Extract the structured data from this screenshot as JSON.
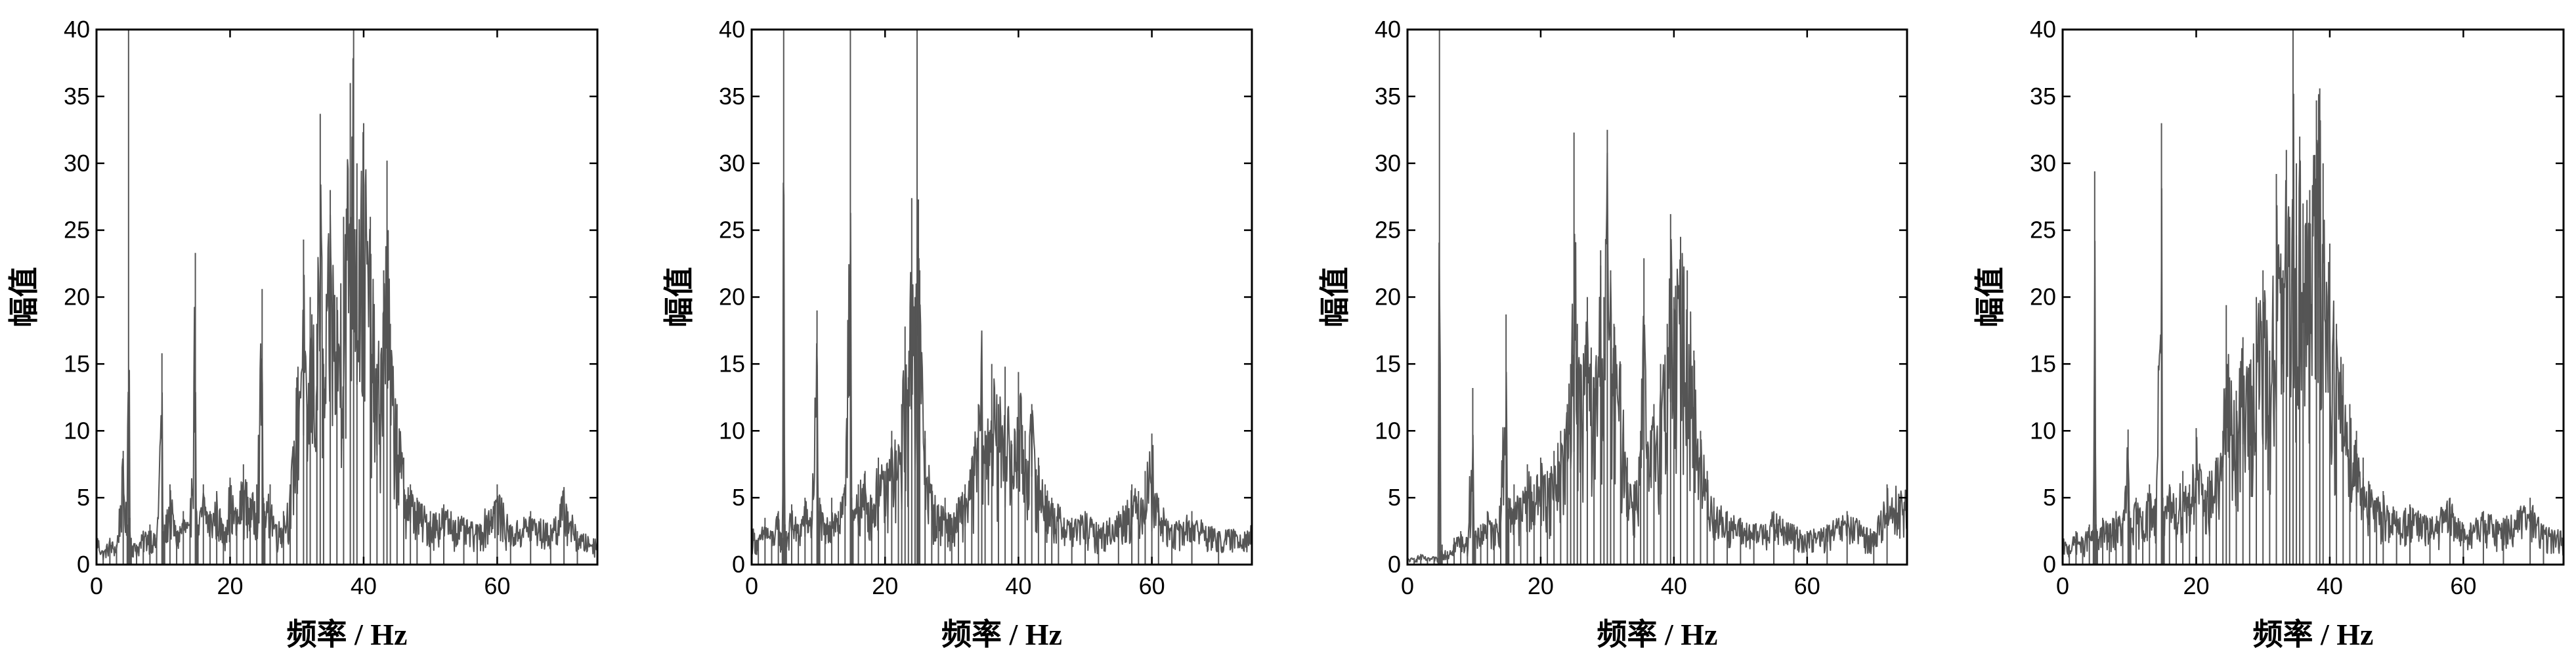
{
  "chart_data": [
    {
      "type": "line",
      "xlabel": "频率 / Hz",
      "ylabel": "幅值",
      "xlim": [
        0,
        75
      ],
      "ylim": [
        0,
        40
      ],
      "xticks": [
        "0",
        "20",
        "40",
        "60"
      ],
      "yticks": [
        "0",
        "5",
        "10",
        "15",
        "20",
        "25",
        "30",
        "35",
        "40"
      ],
      "grid": false,
      "color": "#555555",
      "series": [
        {
          "x": [
            0,
            1,
            2,
            3,
            4,
            4.6,
            4.8,
            5,
            5.2,
            6,
            7,
            8,
            9,
            9.8,
            10,
            10.2,
            11,
            12,
            13,
            14,
            14.8,
            15,
            15.2,
            16,
            17,
            18,
            19,
            20,
            21,
            22,
            23,
            24,
            24.8,
            25,
            25.2,
            26,
            27,
            28,
            29,
            30,
            31,
            31.5,
            32,
            33,
            33.5,
            34,
            35,
            36,
            37,
            38,
            38.5,
            39,
            40,
            41,
            42,
            43,
            43.5,
            44,
            45,
            46,
            47,
            48,
            50,
            52,
            55,
            57,
            60,
            62,
            65,
            68,
            70,
            72,
            75
          ],
          "y": [
            2.5,
            1.0,
            2.0,
            1.5,
            8.5,
            3.0,
            40,
            3.5,
            2.0,
            1.5,
            2.5,
            3.0,
            2.0,
            15.8,
            2.5,
            3.0,
            6.0,
            2.5,
            4.0,
            3.0,
            23.3,
            4.0,
            3.0,
            6.0,
            4.0,
            5.5,
            3.0,
            6.5,
            4.0,
            7.5,
            5.0,
            6.0,
            20.6,
            5.0,
            4.0,
            6.0,
            3.0,
            4.0,
            6.0,
            14.0,
            24.3,
            12.0,
            20.0,
            18.0,
            33.7,
            15.0,
            28.0,
            20.0,
            26.0,
            36.0,
            40,
            30.0,
            33.0,
            26.0,
            15.0,
            22.0,
            30.2,
            18.0,
            12.0,
            8.0,
            6.0,
            5.0,
            4.0,
            4.5,
            3.5,
            3.0,
            6.0,
            3.0,
            4.0,
            3.0,
            5.8,
            2.5,
            2.0
          ]
        }
      ]
    },
    {
      "type": "line",
      "xlabel": "频率 / Hz",
      "ylabel": "幅值",
      "xlim": [
        0,
        75
      ],
      "ylim": [
        0,
        40
      ],
      "xticks": [
        "0",
        "20",
        "40",
        "60"
      ],
      "yticks": [
        "0",
        "5",
        "10",
        "15",
        "20",
        "25",
        "30",
        "35",
        "40"
      ],
      "grid": false,
      "color": "#555555",
      "series": [
        {
          "x": [
            0,
            1,
            2,
            3,
            4,
            4.6,
            4.8,
            5,
            5.2,
            6,
            7,
            8,
            9,
            9.8,
            10,
            10.2,
            11,
            12,
            13,
            14,
            14.8,
            15,
            15.2,
            16,
            17,
            18,
            19,
            20,
            21,
            22,
            22.5,
            23,
            23.5,
            24,
            24.5,
            24.8,
            25,
            25.2,
            26,
            27,
            28,
            29,
            30,
            31,
            32,
            33,
            34,
            34.5,
            35,
            36,
            37,
            38,
            39,
            40,
            41,
            42,
            43,
            44,
            45,
            46,
            48,
            50,
            52,
            55,
            57,
            58,
            59,
            60,
            61,
            63,
            66,
            70,
            75
          ],
          "y": [
            3.0,
            2.0,
            3.5,
            2.5,
            4.0,
            2.0,
            40,
            3.0,
            2.5,
            4.5,
            3.0,
            5.0,
            4.0,
            19.0,
            4.0,
            5.0,
            3.0,
            5.0,
            4.0,
            6.0,
            40,
            5.0,
            4.0,
            6.0,
            7.0,
            5.0,
            8.0,
            7.0,
            10.0,
            9.0,
            12.0,
            17.8,
            14.0,
            27.4,
            20.0,
            40,
            27.3,
            22.0,
            10.0,
            6.0,
            4.5,
            5.0,
            3.5,
            5.0,
            6.0,
            8.0,
            12.0,
            17.5,
            10.0,
            15.0,
            12.0,
            14.8,
            9.0,
            14.4,
            10.0,
            12.0,
            8.0,
            6.0,
            5.0,
            4.5,
            3.5,
            4.0,
            3.0,
            4.0,
            6.0,
            5.5,
            7.0,
            9.8,
            5.0,
            3.0,
            4.0,
            2.5,
            3.0
          ]
        }
      ]
    },
    {
      "type": "line",
      "xlabel": "频率 / Hz",
      "ylabel": "幅值",
      "xlim": [
        0,
        75
      ],
      "ylim": [
        0,
        40
      ],
      "xticks": [
        "0",
        "20",
        "40",
        "60"
      ],
      "yticks": [
        "0",
        "5",
        "10",
        "15",
        "20",
        "25",
        "30",
        "35",
        "40"
      ],
      "grid": false,
      "color": "#555555",
      "series": [
        {
          "x": [
            0,
            1,
            2,
            3,
            4,
            4.6,
            4.8,
            5,
            5.2,
            6,
            7,
            8,
            9,
            9.8,
            10,
            10.2,
            11,
            12,
            13,
            14,
            14.8,
            15,
            15.2,
            16,
            17,
            18,
            19,
            20,
            21,
            22,
            23,
            24,
            24.5,
            25,
            25.5,
            26,
            27,
            28,
            29,
            29.5,
            30,
            30.5,
            31,
            32,
            33,
            34,
            35,
            35.5,
            36,
            37,
            38,
            39,
            39.5,
            40,
            41,
            42,
            43,
            44,
            45,
            46,
            48,
            50,
            52,
            55,
            58,
            60,
            63,
            66,
            70,
            72,
            75
          ],
          "y": [
            0.5,
            0.5,
            0.8,
            0.5,
            0.6,
            0.5,
            40,
            1.0,
            1.5,
            1.0,
            2.0,
            2.5,
            2.0,
            13.2,
            2.0,
            2.5,
            3.0,
            4.0,
            3.0,
            5.0,
            18.7,
            4.0,
            5.0,
            6.0,
            5.0,
            7.5,
            6.0,
            8.0,
            7.0,
            8.5,
            10.0,
            12.0,
            15.0,
            32.3,
            18.0,
            15.0,
            20.0,
            14.0,
            23.5,
            20.0,
            32.5,
            22.0,
            18.0,
            15.0,
            8.0,
            6.0,
            10.0,
            22.9,
            9.0,
            12.0,
            15.0,
            18.0,
            26.2,
            20.0,
            24.5,
            22.0,
            16.0,
            10.0,
            7.0,
            5.0,
            4.0,
            3.5,
            3.0,
            4.0,
            3.0,
            2.5,
            3.0,
            4.0,
            2.5,
            6.0,
            5.8
          ]
        }
      ]
    },
    {
      "type": "line",
      "xlabel": "频率 / Hz",
      "ylabel": "幅值",
      "xlim": [
        0,
        75
      ],
      "ylim": [
        0,
        40
      ],
      "xticks": [
        "0",
        "20",
        "40",
        "60"
      ],
      "yticks": [
        "0",
        "5",
        "10",
        "15",
        "20",
        "25",
        "30",
        "35",
        "40"
      ],
      "grid": false,
      "color": "#555555",
      "series": [
        {
          "x": [
            0,
            1,
            2,
            3,
            4,
            4.6,
            4.8,
            5,
            5.2,
            6,
            7,
            8,
            9,
            9.8,
            10,
            10.2,
            11,
            12,
            13,
            14,
            14.8,
            15,
            15.2,
            16,
            17,
            18,
            19,
            20,
            21,
            22,
            23,
            24,
            24.5,
            25,
            26,
            27,
            28,
            29,
            30,
            31,
            32,
            33,
            33.5,
            34,
            34.5,
            35,
            35.5,
            36,
            37,
            38,
            38.5,
            39,
            40,
            41,
            42,
            43,
            44,
            45,
            46,
            47,
            48,
            50,
            52,
            55,
            58,
            60,
            63,
            66,
            70,
            72,
            75
          ],
          "y": [
            2.0,
            1.5,
            2.5,
            2.0,
            3.0,
            2.5,
            29.4,
            3.0,
            2.5,
            3.5,
            3.0,
            4.0,
            3.5,
            10.1,
            4.0,
            3.5,
            5.0,
            4.0,
            6.0,
            5.0,
            33.0,
            5.0,
            4.0,
            6.0,
            5.0,
            7.0,
            6.0,
            10.2,
            6.0,
            7.0,
            8.0,
            10.0,
            19.4,
            14.0,
            13.0,
            17.0,
            15.0,
            20.0,
            22.0,
            16.0,
            29.2,
            22.0,
            31.0,
            26.0,
            40,
            30.0,
            32.0,
            27.0,
            28.0,
            34.7,
            35.6,
            30.0,
            24.0,
            18.0,
            15.0,
            12.0,
            10.0,
            8.0,
            6.0,
            5.0,
            5.5,
            4.0,
            4.5,
            3.5,
            5.0,
            3.0,
            4.0,
            3.5,
            5.0,
            3.0,
            2.5
          ]
        }
      ]
    }
  ]
}
